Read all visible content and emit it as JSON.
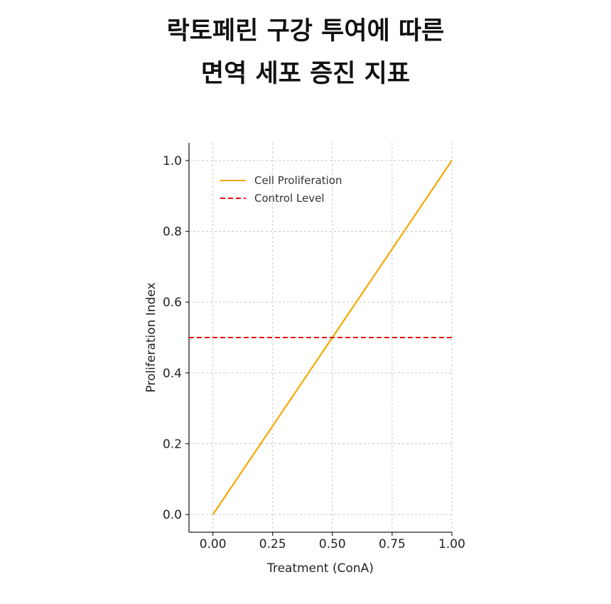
{
  "title_lines": [
    "락토페린 구강 투여에 따른",
    "면역 세포 증진 지표"
  ],
  "chart_data": {
    "type": "line",
    "xlabel": "Treatment (ConA)",
    "ylabel": "Proliferation Index",
    "xlim": [
      -0.1,
      1.0
    ],
    "ylim": [
      -0.05,
      1.05
    ],
    "x_ticks": [
      "0.00",
      "0.25",
      "0.50",
      "0.75",
      "1.00"
    ],
    "y_ticks": [
      "0.0",
      "0.2",
      "0.4",
      "0.6",
      "0.8",
      "1.0"
    ],
    "grid": true,
    "legend_position": "upper-left",
    "series": [
      {
        "name": "Cell Proliferation",
        "style": "solid",
        "color": "#f5a800",
        "x": [
          0.0,
          1.0
        ],
        "y": [
          0.0,
          1.0
        ]
      },
      {
        "name": "Control Level",
        "style": "dashed",
        "color": "#e01010",
        "y_constant": 0.5
      }
    ]
  }
}
